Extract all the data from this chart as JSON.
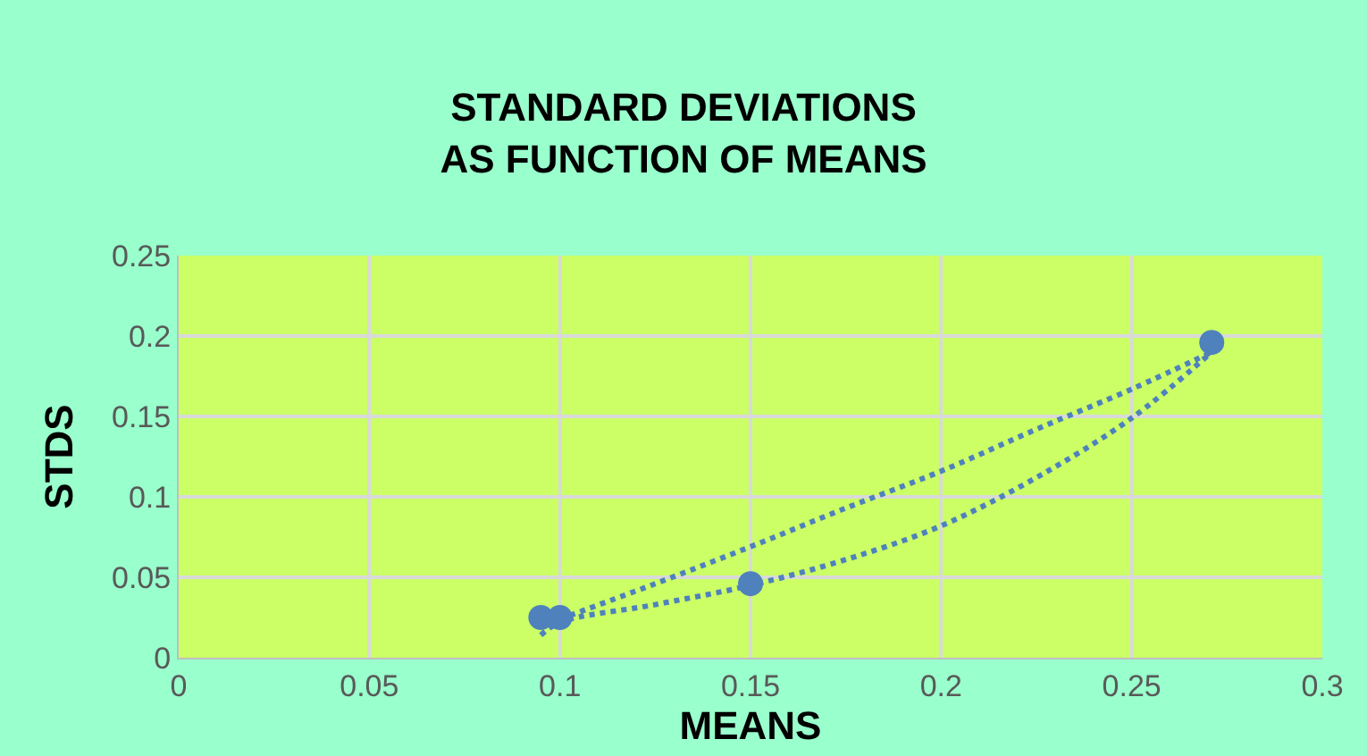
{
  "chart_data": {
    "type": "scatter",
    "title": "STANDARD DEVIATIONS\nAS FUNCTION OF MEANS",
    "xlabel": "MEANS",
    "ylabel": "STDS",
    "series": [
      {
        "color": "#4f81bd",
        "x": [
          0.095,
          0.1,
          0.15,
          0.271
        ],
        "values": [
          0.025,
          0.025,
          0.046,
          0.196
        ],
        "marker": "circle"
      },
      {
        "type": "line",
        "color": "#4f81bd",
        "x": [
          0.095,
          0.1,
          0.125,
          0.15,
          0.175,
          0.2,
          0.225,
          0.25,
          0.271
        ],
        "values": [
          0.014,
          0.022,
          0.033,
          0.045,
          0.061,
          0.082,
          0.112,
          0.149,
          0.19
        ],
        "line_style": "dotted"
      },
      {
        "type": "line",
        "color": "#4f81bd",
        "x": [
          0.1,
          0.125,
          0.15,
          0.175,
          0.2,
          0.225,
          0.25,
          0.271
        ],
        "values": [
          0.024,
          0.046,
          0.069,
          0.093,
          0.116,
          0.142,
          0.167,
          0.19
        ],
        "line_style": "dotted"
      }
    ],
    "xlim": [
      0,
      0.3
    ],
    "xticks": [
      0,
      0.05,
      0.1,
      0.15,
      0.2,
      0.25,
      0.3
    ],
    "ylim": [
      0,
      0.25
    ],
    "yticks": [
      0,
      0.05,
      0.1,
      0.15,
      0.2,
      0.25
    ],
    "grid": true
  }
}
